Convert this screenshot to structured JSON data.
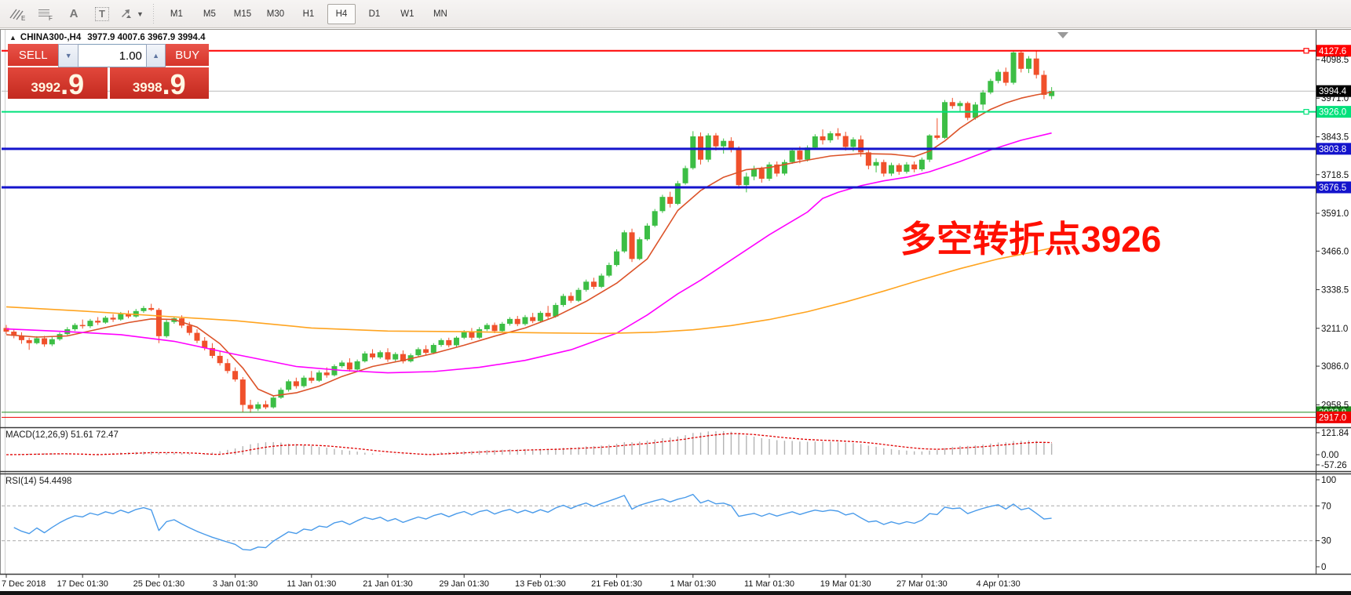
{
  "toolbar": {
    "icons": [
      {
        "name": "indicator-draw-icon",
        "glyph": "E"
      },
      {
        "name": "grid-dots-icon",
        "glyph": "F"
      },
      {
        "name": "text-label-icon",
        "glyph": "A"
      },
      {
        "name": "text-box-icon",
        "glyph": "T"
      },
      {
        "name": "cursor-arrows-icon",
        "glyph": ""
      }
    ],
    "timeframes": [
      {
        "label": "M1",
        "selected": false
      },
      {
        "label": "M5",
        "selected": false
      },
      {
        "label": "M15",
        "selected": false
      },
      {
        "label": "M30",
        "selected": false
      },
      {
        "label": "H1",
        "selected": false
      },
      {
        "label": "H4",
        "selected": true
      },
      {
        "label": "D1",
        "selected": false
      },
      {
        "label": "W1",
        "selected": false
      },
      {
        "label": "MN",
        "selected": false
      }
    ]
  },
  "order_panel": {
    "sell_label": "SELL",
    "buy_label": "BUY",
    "volume": "1.00",
    "spin_down": "▼",
    "spin_up": "▲",
    "sell_price_main": "3992",
    "sell_price_big": ".9",
    "buy_price_main": "3998",
    "buy_price_big": ".9"
  },
  "chart": {
    "collapse_arrow": "▲",
    "title_symbol": "CHINA300-,H4",
    "title_ohlc": "3977.9 4007.6 3967.9 3994.4",
    "annotation": {
      "text": "多空转折点3926",
      "color": "#ff0f00"
    },
    "macd_label": "MACD(12,26,9) 51.61 72.47",
    "rsi_label": "RSI(14) 54.4498"
  },
  "chart_data": {
    "type": "candlestick",
    "symbol": "CHINA300-",
    "timeframe": "H4",
    "title": "CHINA300-,H4 3977.9 4007.6 3967.9 3994.4",
    "last_bar": {
      "open": 3977.9,
      "high": 4007.6,
      "low": 3967.9,
      "close": 3994.4
    },
    "grid": false,
    "legend_position": "none",
    "y_axis_ticks": [
      4098.5,
      3971.0,
      3843.5,
      3718.5,
      3591.0,
      3466.0,
      3338.5,
      3211.0,
      3086.0,
      2958.5
    ],
    "x_tick_labels": [
      "7 Dec 2018",
      "17 Dec 01:30",
      "25 Dec 01:30",
      "3 Jan 01:30",
      "11 Jan 01:30",
      "21 Jan 01:30",
      "29 Jan 01:30",
      "13 Feb 01:30",
      "21 Feb 01:30",
      "1 Mar 01:30",
      "11 Mar 01:30",
      "19 Mar 01:30",
      "27 Mar 01:30",
      "4 Apr 01:30"
    ],
    "x_tick_every": 10,
    "current_price": {
      "value": 3994.4,
      "label_bg": "#000000",
      "line_color": "#bbbbbb"
    },
    "hlines": [
      {
        "price": 4127.6,
        "color": "#ff0000",
        "width": 2,
        "label": true,
        "handle": true
      },
      {
        "price": 3926.0,
        "color": "#00e17b",
        "width": 2,
        "label": true,
        "handle": true
      },
      {
        "price": 3803.8,
        "color": "#1414cc",
        "width": 3,
        "label": true,
        "handle": false
      },
      {
        "price": 3676.5,
        "color": "#1414cc",
        "width": 3,
        "label": true,
        "handle": false
      },
      {
        "price": 2933.8,
        "color": "#1d8a1d",
        "width": 1,
        "label": true,
        "handle": false
      },
      {
        "price": 2917.0,
        "color": "#ee0000",
        "width": 1,
        "label": true,
        "handle": false
      }
    ],
    "colors": {
      "up": "#3cbe45",
      "down": "#f0502b",
      "macd_hist": "#b4b4b4",
      "macd_signal": "#e00000",
      "rsi": "#4a9bea"
    },
    "candles": [
      [
        3212,
        3222,
        3192,
        3200
      ],
      [
        3200,
        3208,
        3178,
        3186
      ],
      [
        3186,
        3198,
        3160,
        3172
      ],
      [
        3172,
        3180,
        3140,
        3162
      ],
      [
        3162,
        3185,
        3158,
        3178
      ],
      [
        3178,
        3186,
        3150,
        3158
      ],
      [
        3158,
        3182,
        3152,
        3175
      ],
      [
        3175,
        3198,
        3170,
        3192
      ],
      [
        3192,
        3215,
        3188,
        3208
      ],
      [
        3208,
        3228,
        3202,
        3222
      ],
      [
        3222,
        3240,
        3210,
        3218
      ],
      [
        3218,
        3242,
        3212,
        3236
      ],
      [
        3236,
        3248,
        3222,
        3230
      ],
      [
        3230,
        3252,
        3226,
        3246
      ],
      [
        3246,
        3258,
        3232,
        3240
      ],
      [
        3240,
        3265,
        3236,
        3258
      ],
      [
        3258,
        3270,
        3244,
        3250
      ],
      [
        3250,
        3275,
        3246,
        3268
      ],
      [
        3268,
        3285,
        3262,
        3278
      ],
      [
        3278,
        3292,
        3268,
        3272
      ],
      [
        3272,
        3278,
        3162,
        3185
      ],
      [
        3185,
        3240,
        3180,
        3232
      ],
      [
        3232,
        3250,
        3226,
        3244
      ],
      [
        3244,
        3254,
        3212,
        3220
      ],
      [
        3220,
        3232,
        3188,
        3196
      ],
      [
        3196,
        3208,
        3162,
        3170
      ],
      [
        3170,
        3182,
        3138,
        3146
      ],
      [
        3146,
        3162,
        3112,
        3120
      ],
      [
        3120,
        3135,
        3088,
        3096
      ],
      [
        3096,
        3110,
        3062,
        3070
      ],
      [
        3070,
        3082,
        3035,
        3042
      ],
      [
        3042,
        3050,
        2935,
        2958
      ],
      [
        2958,
        2975,
        2932,
        2945
      ],
      [
        2945,
        2968,
        2938,
        2960
      ],
      [
        2960,
        2972,
        2944,
        2950
      ],
      [
        2950,
        2988,
        2946,
        2982
      ],
      [
        2982,
        3015,
        2978,
        3008
      ],
      [
        3008,
        3042,
        3002,
        3036
      ],
      [
        3036,
        3048,
        3012,
        3020
      ],
      [
        3020,
        3055,
        3015,
        3048
      ],
      [
        3048,
        3070,
        3030,
        3038
      ],
      [
        3038,
        3072,
        3034,
        3065
      ],
      [
        3065,
        3082,
        3048,
        3056
      ],
      [
        3056,
        3092,
        3052,
        3086
      ],
      [
        3086,
        3105,
        3080,
        3098
      ],
      [
        3098,
        3112,
        3068,
        3075
      ],
      [
        3075,
        3108,
        3070,
        3102
      ],
      [
        3102,
        3135,
        3098,
        3128
      ],
      [
        3128,
        3142,
        3108,
        3115
      ],
      [
        3115,
        3138,
        3110,
        3132
      ],
      [
        3132,
        3145,
        3100,
        3108
      ],
      [
        3108,
        3132,
        3102,
        3126
      ],
      [
        3126,
        3138,
        3095,
        3102
      ],
      [
        3102,
        3128,
        3098,
        3122
      ],
      [
        3122,
        3148,
        3118,
        3142
      ],
      [
        3142,
        3155,
        3122,
        3130
      ],
      [
        3130,
        3162,
        3126,
        3156
      ],
      [
        3156,
        3178,
        3150,
        3172
      ],
      [
        3172,
        3180,
        3148,
        3155
      ],
      [
        3155,
        3185,
        3150,
        3180
      ],
      [
        3180,
        3205,
        3175,
        3198
      ],
      [
        3198,
        3212,
        3172,
        3180
      ],
      [
        3180,
        3215,
        3176,
        3208
      ],
      [
        3208,
        3228,
        3202,
        3222
      ],
      [
        3222,
        3230,
        3195,
        3202
      ],
      [
        3202,
        3232,
        3198,
        3226
      ],
      [
        3226,
        3248,
        3220,
        3242
      ],
      [
        3242,
        3252,
        3218,
        3225
      ],
      [
        3225,
        3255,
        3220,
        3248
      ],
      [
        3248,
        3262,
        3228,
        3235
      ],
      [
        3235,
        3268,
        3230,
        3262
      ],
      [
        3262,
        3285,
        3242,
        3250
      ],
      [
        3250,
        3295,
        3246,
        3288
      ],
      [
        3288,
        3325,
        3282,
        3318
      ],
      [
        3318,
        3330,
        3295,
        3302
      ],
      [
        3302,
        3345,
        3298,
        3338
      ],
      [
        3338,
        3372,
        3332,
        3365
      ],
      [
        3365,
        3378,
        3340,
        3348
      ],
      [
        3348,
        3392,
        3344,
        3385
      ],
      [
        3385,
        3428,
        3380,
        3420
      ],
      [
        3420,
        3472,
        3415,
        3465
      ],
      [
        3465,
        3535,
        3460,
        3528
      ],
      [
        3528,
        3540,
        3430,
        3440
      ],
      [
        3440,
        3512,
        3436,
        3505
      ],
      [
        3505,
        3558,
        3500,
        3550
      ],
      [
        3550,
        3605,
        3545,
        3598
      ],
      [
        3598,
        3652,
        3592,
        3645
      ],
      [
        3645,
        3662,
        3610,
        3622
      ],
      [
        3622,
        3698,
        3618,
        3690
      ],
      [
        3690,
        3748,
        3685,
        3740
      ],
      [
        3740,
        3862,
        3735,
        3845
      ],
      [
        3845,
        3858,
        3752,
        3768
      ],
      [
        3768,
        3855,
        3760,
        3848
      ],
      [
        3848,
        3856,
        3798,
        3812
      ],
      [
        3812,
        3838,
        3788,
        3830
      ],
      [
        3830,
        3842,
        3792,
        3806
      ],
      [
        3806,
        3812,
        3672,
        3684
      ],
      [
        3684,
        3725,
        3660,
        3712
      ],
      [
        3712,
        3748,
        3700,
        3738
      ],
      [
        3738,
        3745,
        3692,
        3705
      ],
      [
        3705,
        3760,
        3698,
        3752
      ],
      [
        3752,
        3762,
        3712,
        3722
      ],
      [
        3722,
        3768,
        3716,
        3760
      ],
      [
        3760,
        3805,
        3754,
        3798
      ],
      [
        3798,
        3812,
        3756,
        3768
      ],
      [
        3768,
        3815,
        3762,
        3808
      ],
      [
        3808,
        3852,
        3802,
        3845
      ],
      [
        3845,
        3868,
        3818,
        3832
      ],
      [
        3832,
        3862,
        3824,
        3855
      ],
      [
        3855,
        3872,
        3834,
        3846
      ],
      [
        3846,
        3860,
        3798,
        3810
      ],
      [
        3810,
        3842,
        3795,
        3835
      ],
      [
        3835,
        3848,
        3778,
        3792
      ],
      [
        3792,
        3800,
        3736,
        3748
      ],
      [
        3748,
        3772,
        3726,
        3760
      ],
      [
        3760,
        3768,
        3712,
        3722
      ],
      [
        3722,
        3758,
        3714,
        3750
      ],
      [
        3750,
        3756,
        3718,
        3728
      ],
      [
        3728,
        3760,
        3722,
        3752
      ],
      [
        3752,
        3762,
        3726,
        3736
      ],
      [
        3736,
        3775,
        3730,
        3768
      ],
      [
        3768,
        3852,
        3760,
        3848
      ],
      [
        3848,
        3905,
        3834,
        3840
      ],
      [
        3840,
        3965,
        3836,
        3958
      ],
      [
        3958,
        3972,
        3936,
        3945
      ],
      [
        3945,
        3962,
        3928,
        3955
      ],
      [
        3955,
        3960,
        3898,
        3906
      ],
      [
        3906,
        3958,
        3900,
        3950
      ],
      [
        3950,
        3998,
        3932,
        3990
      ],
      [
        3990,
        4035,
        3984,
        4028
      ],
      [
        4028,
        4066,
        4020,
        4058
      ],
      [
        4058,
        4072,
        4012,
        4022
      ],
      [
        4022,
        4128,
        4016,
        4122
      ],
      [
        4122,
        4126,
        4056,
        4068
      ],
      [
        4068,
        4110,
        4054,
        4102
      ],
      [
        4102,
        4127,
        4036,
        4048
      ],
      [
        4048,
        4062,
        3968,
        3982
      ],
      [
        3977.9,
        4007.6,
        3967.9,
        3994.4
      ]
    ],
    "overlays": [
      {
        "name": "ma-fast",
        "color": "#dc5329",
        "points": [
          [
            0,
            3190
          ],
          [
            4,
            3182
          ],
          [
            8,
            3186
          ],
          [
            12,
            3208
          ],
          [
            16,
            3230
          ],
          [
            19,
            3242
          ],
          [
            22,
            3240
          ],
          [
            25,
            3215
          ],
          [
            28,
            3160
          ],
          [
            31,
            3080
          ],
          [
            33,
            3010
          ],
          [
            35,
            2988
          ],
          [
            38,
            2998
          ],
          [
            41,
            3020
          ],
          [
            44,
            3052
          ],
          [
            48,
            3085
          ],
          [
            52,
            3105
          ],
          [
            56,
            3128
          ],
          [
            60,
            3155
          ],
          [
            64,
            3185
          ],
          [
            68,
            3212
          ],
          [
            72,
            3250
          ],
          [
            76,
            3300
          ],
          [
            80,
            3360
          ],
          [
            84,
            3440
          ],
          [
            88,
            3600
          ],
          [
            91,
            3666
          ],
          [
            94,
            3710
          ],
          [
            97,
            3735
          ],
          [
            100,
            3742
          ],
          [
            104,
            3762
          ],
          [
            108,
            3780
          ],
          [
            112,
            3788
          ],
          [
            116,
            3786
          ],
          [
            119,
            3778
          ],
          [
            121,
            3796
          ],
          [
            123,
            3830
          ],
          [
            125,
            3872
          ],
          [
            127,
            3905
          ],
          [
            129,
            3934
          ],
          [
            131,
            3955
          ],
          [
            133,
            3971
          ],
          [
            135,
            3982
          ],
          [
            137,
            3991
          ]
        ]
      },
      {
        "name": "ma-medium",
        "color": "#ff00ff",
        "points": [
          [
            0,
            3209
          ],
          [
            8,
            3200
          ],
          [
            15,
            3190
          ],
          [
            22,
            3168
          ],
          [
            30,
            3125
          ],
          [
            38,
            3085
          ],
          [
            44,
            3072
          ],
          [
            50,
            3064
          ],
          [
            56,
            3068
          ],
          [
            62,
            3082
          ],
          [
            68,
            3105
          ],
          [
            74,
            3140
          ],
          [
            80,
            3195
          ],
          [
            84,
            3255
          ],
          [
            88,
            3325
          ],
          [
            91,
            3370
          ],
          [
            94,
            3420
          ],
          [
            97,
            3470
          ],
          [
            100,
            3520
          ],
          [
            103,
            3565
          ],
          [
            105,
            3595
          ],
          [
            107,
            3640
          ],
          [
            109,
            3660
          ],
          [
            112,
            3682
          ],
          [
            115,
            3698
          ],
          [
            118,
            3710
          ],
          [
            121,
            3728
          ],
          [
            125,
            3762
          ],
          [
            129,
            3800
          ],
          [
            133,
            3832
          ],
          [
            137,
            3856
          ]
        ]
      },
      {
        "name": "ma-slow",
        "color": "#ffa420",
        "points": [
          [
            0,
            3282
          ],
          [
            10,
            3268
          ],
          [
            20,
            3252
          ],
          [
            30,
            3236
          ],
          [
            40,
            3212
          ],
          [
            50,
            3202
          ],
          [
            60,
            3200
          ],
          [
            70,
            3196
          ],
          [
            78,
            3194
          ],
          [
            85,
            3198
          ],
          [
            90,
            3206
          ],
          [
            95,
            3220
          ],
          [
            100,
            3240
          ],
          [
            105,
            3266
          ],
          [
            110,
            3298
          ],
          [
            115,
            3334
          ],
          [
            120,
            3372
          ],
          [
            125,
            3408
          ],
          [
            130,
            3440
          ],
          [
            134,
            3460
          ],
          [
            137,
            3476
          ]
        ]
      }
    ],
    "macd": {
      "label": "MACD(12,26,9)",
      "params": [
        12,
        26,
        9
      ],
      "current": [
        51.61,
        72.47
      ],
      "axis": [
        121.84,
        0.0,
        -57.26
      ]
    },
    "rsi": {
      "label": "RSI(14)",
      "period": 14,
      "current": 54.4498,
      "axis": [
        100,
        70,
        30,
        0
      ],
      "levels": [
        70,
        30
      ]
    }
  }
}
